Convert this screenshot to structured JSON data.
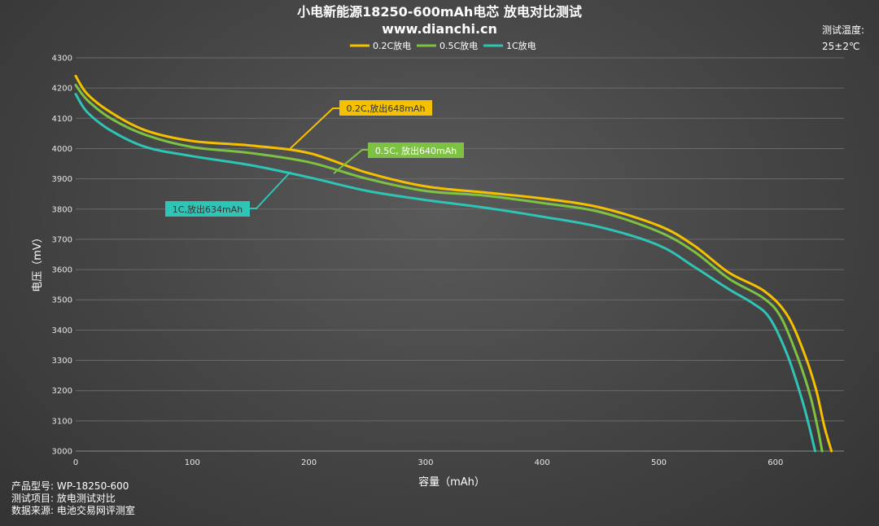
{
  "header": {
    "title": "小电新能源18250-600mAh电芯 放电对比测试",
    "subtitle": "www.dianchi.cn"
  },
  "test_temp": {
    "label": "测试温度:",
    "value": "25±2℃"
  },
  "footer": {
    "model": "产品型号:  WP-18250-600",
    "project": "测试项目:  放电测试对比",
    "source": "数据来源:  电池交易网评测室"
  },
  "chart_data": {
    "type": "line",
    "xlabel": "容量（mAh）",
    "ylabel": "电压（mV）",
    "xlim": [
      0,
      660
    ],
    "ylim": [
      3000,
      4300
    ],
    "xticks": [
      0,
      100,
      200,
      300,
      400,
      500,
      600
    ],
    "yticks": [
      3000,
      3100,
      3200,
      3300,
      3400,
      3500,
      3600,
      3700,
      3800,
      3900,
      4000,
      4100,
      4200,
      4300
    ],
    "grid": true,
    "legend_position": "top-center",
    "series": [
      {
        "name": "0.2C放电",
        "color": "#f5c000",
        "x": [
          0,
          10,
          30,
          60,
          100,
          150,
          200,
          250,
          300,
          350,
          400,
          450,
          500,
          530,
          560,
          590,
          610,
          625,
          635,
          642,
          648
        ],
        "y": [
          4240,
          4180,
          4120,
          4060,
          4025,
          4010,
          3985,
          3920,
          3875,
          3855,
          3835,
          3805,
          3745,
          3680,
          3590,
          3530,
          3450,
          3320,
          3200,
          3080,
          3000
        ]
      },
      {
        "name": "0.5C放电",
        "color": "#7dc242",
        "x": [
          0,
          10,
          30,
          60,
          100,
          150,
          200,
          250,
          300,
          350,
          400,
          450,
          500,
          530,
          560,
          590,
          605,
          620,
          630,
          636,
          640
        ],
        "y": [
          4210,
          4160,
          4100,
          4045,
          4005,
          3985,
          3955,
          3900,
          3860,
          3845,
          3820,
          3790,
          3725,
          3660,
          3570,
          3505,
          3440,
          3300,
          3180,
          3080,
          3000
        ]
      },
      {
        "name": "1C放电",
        "color": "#2ec4b6",
        "x": [
          0,
          10,
          30,
          60,
          100,
          150,
          200,
          250,
          300,
          350,
          400,
          450,
          500,
          530,
          560,
          580,
          595,
          610,
          622,
          629,
          634
        ],
        "y": [
          4180,
          4120,
          4060,
          4005,
          3975,
          3945,
          3905,
          3860,
          3830,
          3805,
          3775,
          3740,
          3680,
          3610,
          3535,
          3490,
          3440,
          3320,
          3180,
          3080,
          3000
        ]
      }
    ],
    "annotations": [
      {
        "text": "0.2C,放出648mAh",
        "color": "#f5c000",
        "text_color": "#333333"
      },
      {
        "text": "0.5C, 放出640mAh",
        "color": "#7dc242",
        "text_color": "#ffffff"
      },
      {
        "text": "1C,放出634mAh",
        "color": "#2ec4b6",
        "text_color": "#333333"
      }
    ]
  }
}
